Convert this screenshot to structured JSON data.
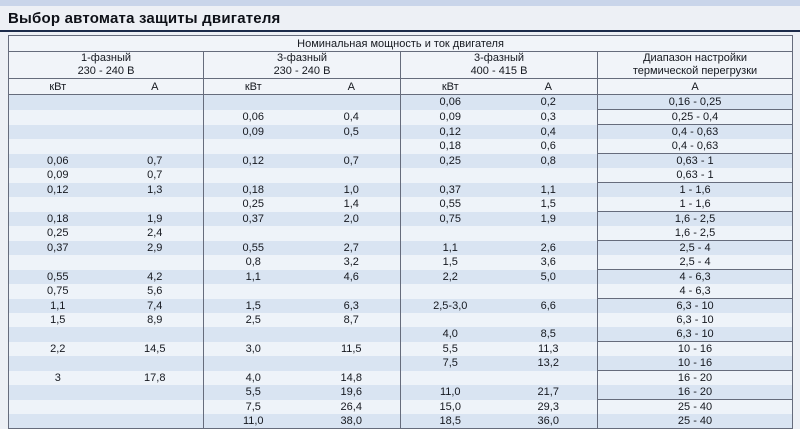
{
  "page_title": "Выбор автомата защиты двигателя",
  "colors": {
    "page_bg": "#edf0f5",
    "top_strip": "#c9d5ea",
    "title_rule": "#1c2b4a",
    "table_line": "#666c7c",
    "header_bg": "#f1f4f9",
    "band_blue": "#d9e4f2",
    "band_white": "#eef3f9"
  },
  "table": {
    "header": {
      "span_title": "Номинальная мощность и ток двигателя",
      "groups": [
        {
          "line1": "1-фазный",
          "line2": "230 - 240 В"
        },
        {
          "line1": "3-фазный",
          "line2": "230 - 240 В"
        },
        {
          "line1": "3-фазный",
          "line2": "400 - 415 В"
        },
        {
          "line1": "Диапазон настройки",
          "line2": "термической перегрузки"
        }
      ],
      "units": [
        "кВт",
        "А",
        "кВт",
        "А",
        "кВт",
        "А",
        "А"
      ]
    },
    "rows": [
      [
        "",
        "",
        "",
        "",
        "0,06",
        "0,2",
        "0,16 - 0,25"
      ],
      [
        "",
        "",
        "0,06",
        "0,4",
        "0,09",
        "0,3",
        "0,25 - 0,4"
      ],
      [
        "",
        "",
        "0,09",
        "0,5",
        "0,12",
        "0,4",
        "0,4 - 0,63"
      ],
      [
        "",
        "",
        "",
        "",
        "0,18",
        "0,6",
        "0,4 - 0,63"
      ],
      [
        "0,06",
        "0,7",
        "0,12",
        "0,7",
        "0,25",
        "0,8",
        "0,63 - 1"
      ],
      [
        "0,09",
        "0,7",
        "",
        "",
        "",
        "",
        "0,63 - 1"
      ],
      [
        "0,12",
        "1,3",
        "0,18",
        "1,0",
        "0,37",
        "1,1",
        "1 - 1,6"
      ],
      [
        "",
        "",
        "0,25",
        "1,4",
        "0,55",
        "1,5",
        "1 - 1,6"
      ],
      [
        "0,18",
        "1,9",
        "0,37",
        "2,0",
        "0,75",
        "1,9",
        "1,6 - 2,5"
      ],
      [
        "0,25",
        "2,4",
        "",
        "",
        "",
        "",
        "1,6 - 2,5"
      ],
      [
        "0,37",
        "2,9",
        "0,55",
        "2,7",
        "1,1",
        "2,6",
        "2,5 - 4"
      ],
      [
        "",
        "",
        "0,8",
        "3,2",
        "1,5",
        "3,6",
        "2,5 - 4"
      ],
      [
        "0,55",
        "4,2",
        "1,1",
        "4,6",
        "2,2",
        "5,0",
        "4 - 6,3"
      ],
      [
        "0,75",
        "5,6",
        "",
        "",
        "",
        "",
        "4 - 6,3"
      ],
      [
        "1,1",
        "7,4",
        "1,5",
        "6,3",
        "2,5-3,0",
        "6,6",
        "6,3 - 10"
      ],
      [
        "1,5",
        "8,9",
        "2,5",
        "8,7",
        "",
        "",
        "6,3 - 10"
      ],
      [
        "",
        "",
        "",
        "",
        "4,0",
        "8,5",
        "6,3 - 10"
      ],
      [
        "2,2",
        "14,5",
        "3,0",
        "11,5",
        "5,5",
        "11,3",
        "10 - 16"
      ],
      [
        "",
        "",
        "",
        "",
        "7,5",
        "13,2",
        "10 - 16"
      ],
      [
        "3",
        "17,8",
        "4,0",
        "14,8",
        "",
        "",
        "16 - 20"
      ],
      [
        "",
        "",
        "5,5",
        "19,6",
        "11,0",
        "21,7",
        "16 - 20"
      ],
      [
        "",
        "",
        "7,5",
        "26,4",
        "15,0",
        "29,3",
        "25 - 40"
      ],
      [
        "",
        "",
        "11,0",
        "38,0",
        "18,5",
        "36,0",
        "25 - 40"
      ]
    ]
  }
}
